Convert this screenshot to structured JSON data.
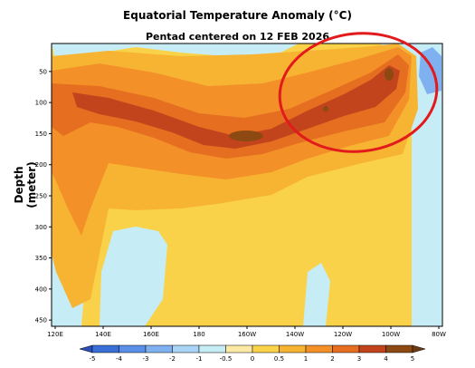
{
  "chart_data": {
    "type": "heatmap",
    "title": "Equatorial Temperature Anomaly (°C)",
    "subtitle": "Pentad centered on 12 FEB 2026",
    "xlabel": "",
    "ylabel": "Depth (meter)",
    "x_ticks": [
      "120E",
      "140E",
      "160E",
      "180",
      "160W",
      "140W",
      "120W",
      "100W",
      "80W"
    ],
    "x_range_deg_east": [
      120,
      280
    ],
    "y_ticks": [
      50,
      100,
      150,
      200,
      250,
      300,
      350,
      400,
      450
    ],
    "y_range": [
      5,
      460
    ],
    "y_inverted": true,
    "colorbar": {
      "levels": [
        -5,
        -4,
        -3,
        -2,
        -1,
        -0.5,
        0,
        0.5,
        1,
        2,
        3,
        4,
        5
      ],
      "colors": [
        "#2a4fb8",
        "#3b6fd8",
        "#5a8fe8",
        "#7fb1f0",
        "#a9d4f6",
        "#c6ecf6",
        "#fde9a6",
        "#f9d24a",
        "#f7b432",
        "#f39128",
        "#e56e21",
        "#c2441c",
        "#8c4a12",
        "#6e3a10"
      ]
    },
    "annotations": [
      {
        "type": "ellipse",
        "color": "#e31a1c",
        "region": "140W-95W, 20-170 m"
      }
    ]
  }
}
